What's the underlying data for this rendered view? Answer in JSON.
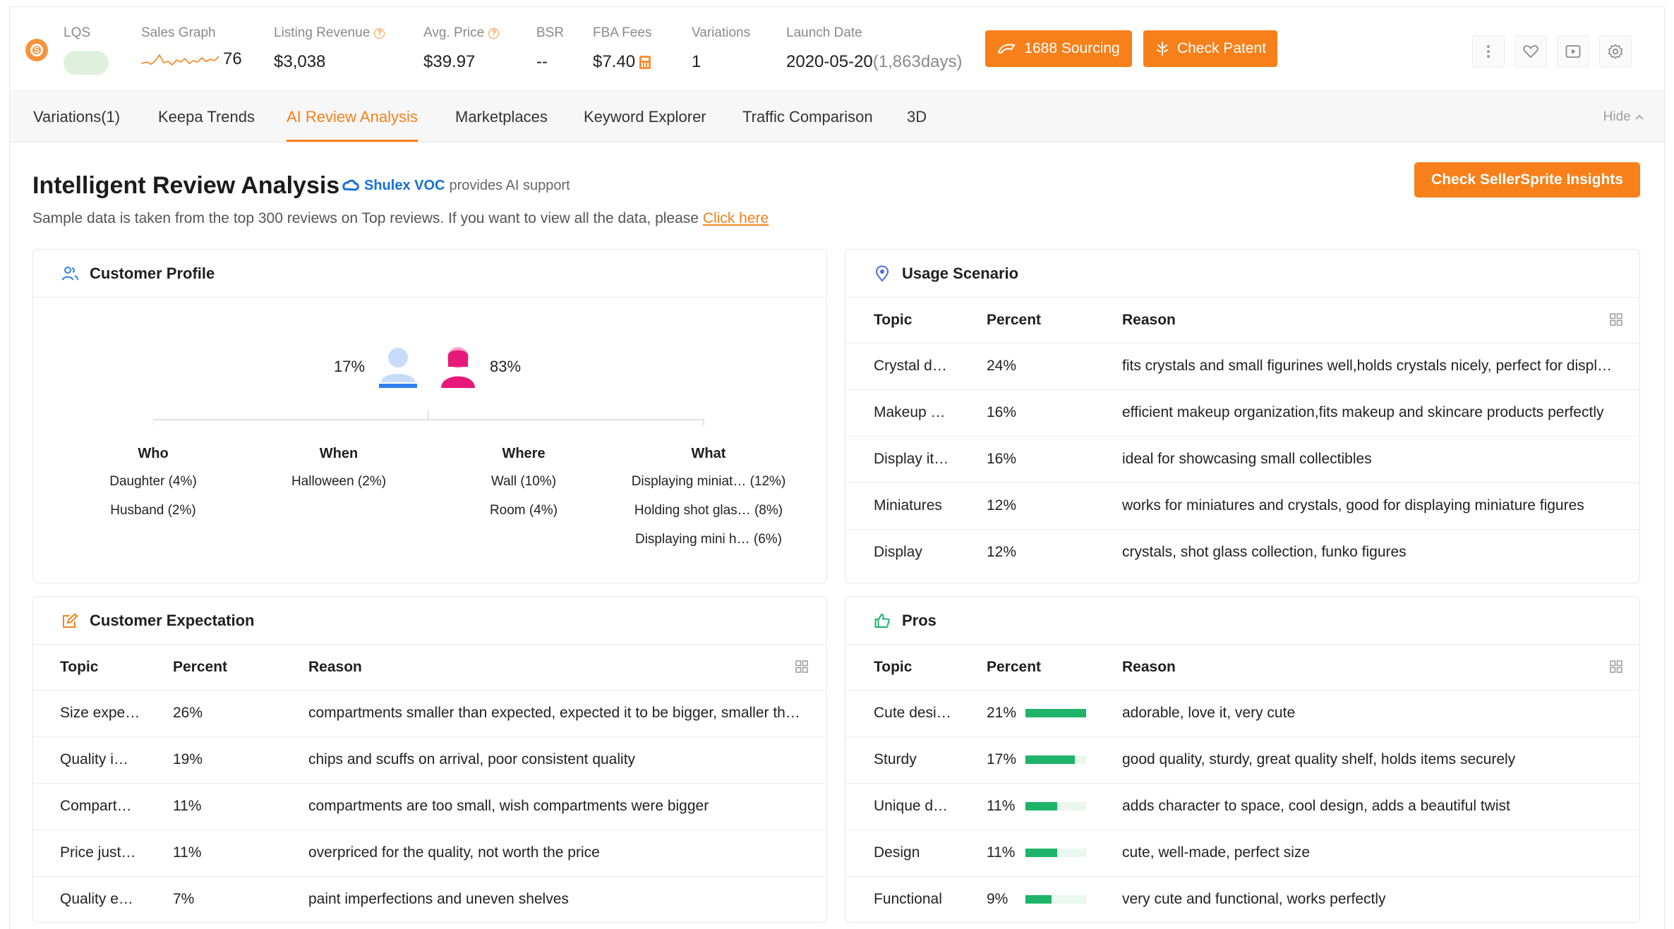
{
  "metrics": {
    "lqs_label": "LQS",
    "sales_graph_label": "Sales Graph",
    "sales_graph_value": "76",
    "listing_revenue_label": "Listing Revenue",
    "listing_revenue_value": "$3,038",
    "avg_price_label": "Avg. Price",
    "avg_price_value": "$39.97",
    "bsr_label": "BSR",
    "bsr_value": "--",
    "fba_fees_label": "FBA Fees",
    "fba_fees_value": "$7.40",
    "variations_label": "Variations",
    "variations_value": "1",
    "launch_date_label": "Launch Date",
    "launch_date_value": "2020-05-20",
    "launch_days": "(1,863days)"
  },
  "actions": {
    "sourcing_label": "1688 Sourcing",
    "patent_label": "Check Patent"
  },
  "tabs": [
    {
      "label": "Variations(1)"
    },
    {
      "label": "Keepa Trends"
    },
    {
      "label": "AI Review Analysis"
    },
    {
      "label": "Marketplaces"
    },
    {
      "label": "Keyword Explorer"
    },
    {
      "label": "Traffic Comparison"
    },
    {
      "label": "3D"
    }
  ],
  "hide_label": "Hide",
  "header": {
    "title": "Intelligent Review Analysis",
    "voc_brand": "Shulex VOC",
    "voc_suffix": "provides AI support",
    "subtitle": "Sample data is taken from the top 300 reviews on Top reviews. If you want to view all the data, please",
    "subtitle_link": "Click here",
    "insights_button": "Check SellerSprite Insights"
  },
  "customer_profile": {
    "title": "Customer Profile",
    "male_pct": "17%",
    "female_pct": "83%",
    "columns": [
      {
        "title": "Who",
        "items": [
          "Daughter (4%)",
          "Husband (2%)"
        ]
      },
      {
        "title": "When",
        "items": [
          "Halloween (2%)"
        ]
      },
      {
        "title": "Where",
        "items": [
          "Wall (10%)",
          "Room (4%)"
        ]
      },
      {
        "title": "What",
        "items": [
          "Displaying miniat…  (12%)",
          "Holding shot glas…  (8%)",
          "Displaying mini h…  (6%)"
        ]
      }
    ]
  },
  "usage_scenario": {
    "title": "Usage Scenario",
    "headers": [
      "Topic",
      "Percent",
      "Reason"
    ],
    "rows": [
      {
        "topic": "Crystal d…",
        "percent": "24%",
        "reason": "fits crystals and small figurines well,holds crystals nicely, perfect for displ…"
      },
      {
        "topic": "Makeup …",
        "percent": "16%",
        "reason": "efficient makeup organization,fits makeup and skincare products perfectly"
      },
      {
        "topic": "Display it…",
        "percent": "16%",
        "reason": "ideal for showcasing small collectibles"
      },
      {
        "topic": "Miniatures",
        "percent": "12%",
        "reason": "works for miniatures and crystals, good for displaying miniature figures"
      },
      {
        "topic": "Display",
        "percent": "12%",
        "reason": "crystals, shot glass collection, funko figures"
      }
    ]
  },
  "customer_expectation": {
    "title": "Customer Expectation",
    "headers": [
      "Topic",
      "Percent",
      "Reason"
    ],
    "rows": [
      {
        "topic": "Size expe…",
        "percent": "26%",
        "reason": "compartments smaller than expected, expected it to be bigger, smaller th…"
      },
      {
        "topic": "Quality i…",
        "percent": "19%",
        "reason": "chips and scuffs on arrival, poor consistent quality"
      },
      {
        "topic": "Compart…",
        "percent": "11%",
        "reason": "compartments are too small, wish compartments were bigger"
      },
      {
        "topic": "Price just…",
        "percent": "11%",
        "reason": "overpriced for the quality, not worth the price"
      },
      {
        "topic": "Quality e…",
        "percent": "7%",
        "reason": "paint imperfections and uneven shelves"
      }
    ]
  },
  "pros": {
    "title": "Pros",
    "headers": [
      "Topic",
      "Percent",
      "Reason"
    ],
    "rows": [
      {
        "topic": "Cute desi…",
        "percent": "21%",
        "fill": 1.0,
        "reason": "adorable, love it, very cute"
      },
      {
        "topic": "Sturdy",
        "percent": "17%",
        "fill": 0.81,
        "reason": "good quality, sturdy, great quality shelf, holds items securely"
      },
      {
        "topic": "Unique d…",
        "percent": "11%",
        "fill": 0.52,
        "reason": "adds character to space, cool design, adds a beautiful twist"
      },
      {
        "topic": "Design",
        "percent": "11%",
        "fill": 0.52,
        "reason": "cute, well-made, perfect size"
      },
      {
        "topic": "Functional",
        "percent": "9%",
        "fill": 0.43,
        "reason": "very cute and functional, works perfectly"
      }
    ]
  },
  "colors": {
    "accent": "#f7801a",
    "male": "#2f80ed",
    "female": "#e6197a",
    "bar": "#1fb36a",
    "brand_voc": "#1570d6"
  }
}
